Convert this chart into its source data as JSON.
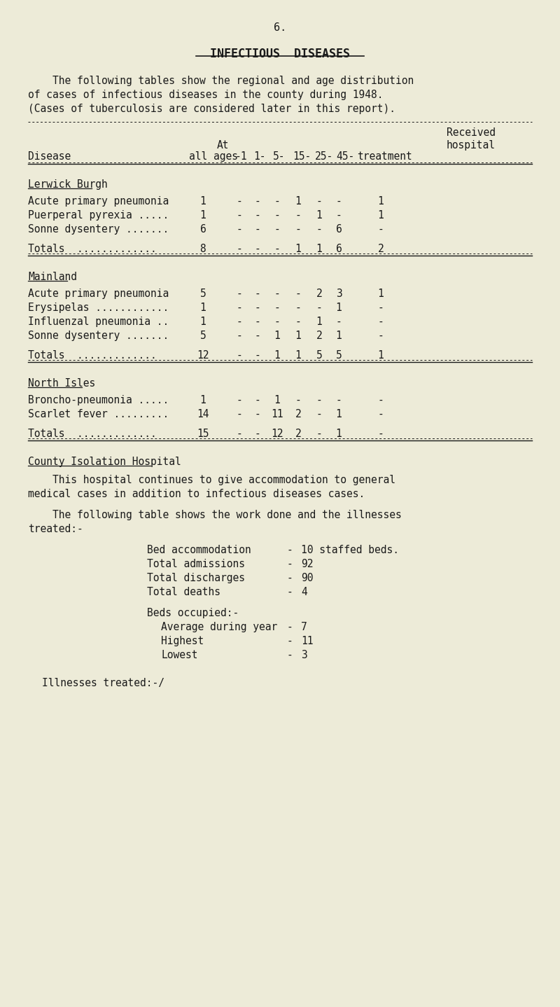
{
  "bg_color": "#edebd8",
  "text_color": "#1a1a1a",
  "page_number": "6.",
  "title": "INFECTIOUS  DISEASES",
  "intro_lines": [
    "    The following tables show the regional and age distribution",
    "of cases of infectious diseases in the county during 1948.",
    "(Cases of tuberculosis are considered later in this report)."
  ],
  "sections": [
    {
      "name": "Lerwick Burgh",
      "rows": [
        {
          "disease": "Acute primary pneumonia",
          "all": "1",
          "c1": "-",
          "c2": "-",
          "c3": "-",
          "c4": "1",
          "c5": "-",
          "c6": "-",
          "hosp": "1"
        },
        {
          "disease": "Puerperal pyrexia .....",
          "all": "1",
          "c1": "-",
          "c2": "-",
          "c3": "-",
          "c4": "-",
          "c5": "1",
          "c6": "-",
          "hosp": "1"
        },
        {
          "disease": "Sonne dysentery .......",
          "all": "6",
          "c1": "-",
          "c2": "-",
          "c3": "-",
          "c4": "-",
          "c5": "-",
          "c6": "6",
          "hosp": "-"
        }
      ],
      "total_row": {
        "all": "8",
        "c1": "-",
        "c2": "-",
        "c3": "-",
        "c4": "1",
        "c5": "1",
        "c6": "6",
        "hosp": "2"
      }
    },
    {
      "name": "Mainland",
      "rows": [
        {
          "disease": "Acute primary pneumonia",
          "all": "5",
          "c1": "-",
          "c2": "-",
          "c3": "-",
          "c4": "-",
          "c5": "2",
          "c6": "3",
          "hosp": "1"
        },
        {
          "disease": "Erysipelas ............",
          "all": "1",
          "c1": "-",
          "c2": "-",
          "c3": "-",
          "c4": "-",
          "c5": "-",
          "c6": "1",
          "hosp": "-"
        },
        {
          "disease": "Influenzal pneumonia ..",
          "all": "1",
          "c1": "-",
          "c2": "-",
          "c3": "-",
          "c4": "-",
          "c5": "1",
          "c6": "-",
          "hosp": "-"
        },
        {
          "disease": "Sonne dysentery .......",
          "all": "5",
          "c1": "-",
          "c2": "-",
          "c3": "1",
          "c4": "1",
          "c5": "2",
          "c6": "1",
          "hosp": "-"
        }
      ],
      "total_row": {
        "all": "12",
        "c1": "-",
        "c2": "-",
        "c3": "1",
        "c4": "1",
        "c5": "5",
        "c6": "5",
        "hosp": "1"
      }
    },
    {
      "name": "North Isles",
      "rows": [
        {
          "disease": "Broncho-pneumonia .....",
          "all": "1",
          "c1": "-",
          "c2": "-",
          "c3": "1",
          "c4": "-",
          "c5": "-",
          "c6": "-",
          "hosp": "-"
        },
        {
          "disease": "Scarlet fever .........",
          "all": "14",
          "c1": "-",
          "c2": "-",
          "c3": "11",
          "c4": "2",
          "c5": "-",
          "c6": "1",
          "hosp": "-"
        }
      ],
      "total_row": {
        "all": "15",
        "c1": "-",
        "c2": "-",
        "c3": "12",
        "c4": "2",
        "c5": "-",
        "c6": "1",
        "hosp": "-"
      }
    }
  ],
  "county_section_title": "County Isolation Hospital",
  "county_para_lines": [
    "    This hospital continues to give accommodation to general",
    "medical cases in addition to infectious diseases cases.",
    "",
    "    The following table shows the work done and the illnesses",
    "treated:-"
  ],
  "hospital_items": [
    {
      "label": "Bed accommodation",
      "dash": "-",
      "value": "10 staffed beds."
    },
    {
      "label": "Total admissions",
      "dash": "-",
      "value": "92"
    },
    {
      "label": "Total discharges",
      "dash": "-",
      "value": "90"
    },
    {
      "label": "Total deaths",
      "dash": "-",
      "value": "4"
    }
  ],
  "beds_occupied_label": "Beds occupied:-",
  "beds_items": [
    {
      "label": "Average during year",
      "dash": "-",
      "value": "7"
    },
    {
      "label": "Highest",
      "dash": "-",
      "value": "11"
    },
    {
      "label": "Lowest",
      "dash": "-",
      "value": "3"
    }
  ],
  "final_line": "Illnesses treated:-/"
}
